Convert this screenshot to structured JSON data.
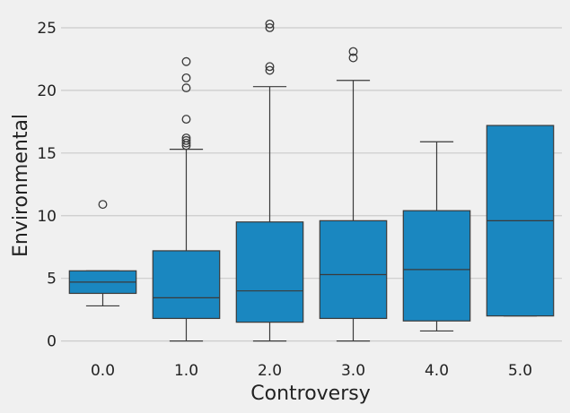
{
  "chart_data": {
    "type": "box",
    "xlabel": "Controversy",
    "ylabel": "Environmental",
    "categories": [
      "0.0",
      "1.0",
      "2.0",
      "3.0",
      "4.0",
      "5.0"
    ],
    "ylim": [
      -1.1,
      26.5
    ],
    "yticks": [
      0,
      5,
      10,
      15,
      20,
      25
    ],
    "grid": true,
    "color": "#1a87c0",
    "boxes": [
      {
        "category": "0.0",
        "whisker_low": 2.8,
        "q1": 3.8,
        "median": 4.7,
        "q3": 5.6,
        "whisker_high": 5.6,
        "outliers": [
          10.9
        ]
      },
      {
        "category": "1.0",
        "whisker_low": 0.0,
        "q1": 1.8,
        "median": 3.45,
        "q3": 7.2,
        "whisker_high": 15.3,
        "outliers": [
          15.6,
          15.8,
          16.0,
          16.2,
          17.7,
          20.2,
          21.0,
          22.3
        ]
      },
      {
        "category": "2.0",
        "whisker_low": 0.0,
        "q1": 1.5,
        "median": 4.0,
        "q3": 9.5,
        "whisker_high": 20.3,
        "outliers": [
          21.6,
          21.9,
          25.0,
          25.3
        ]
      },
      {
        "category": "3.0",
        "whisker_low": 0.0,
        "q1": 1.8,
        "median": 5.3,
        "q3": 9.6,
        "whisker_high": 20.8,
        "outliers": [
          22.6,
          23.1
        ]
      },
      {
        "category": "4.0",
        "whisker_low": 0.8,
        "q1": 1.6,
        "median": 5.7,
        "q3": 10.4,
        "whisker_high": 15.9,
        "outliers": []
      },
      {
        "category": "5.0",
        "whisker_low": 2.0,
        "q1": 2.0,
        "median": 9.6,
        "q3": 17.2,
        "whisker_high": 17.2,
        "outliers": []
      }
    ]
  }
}
